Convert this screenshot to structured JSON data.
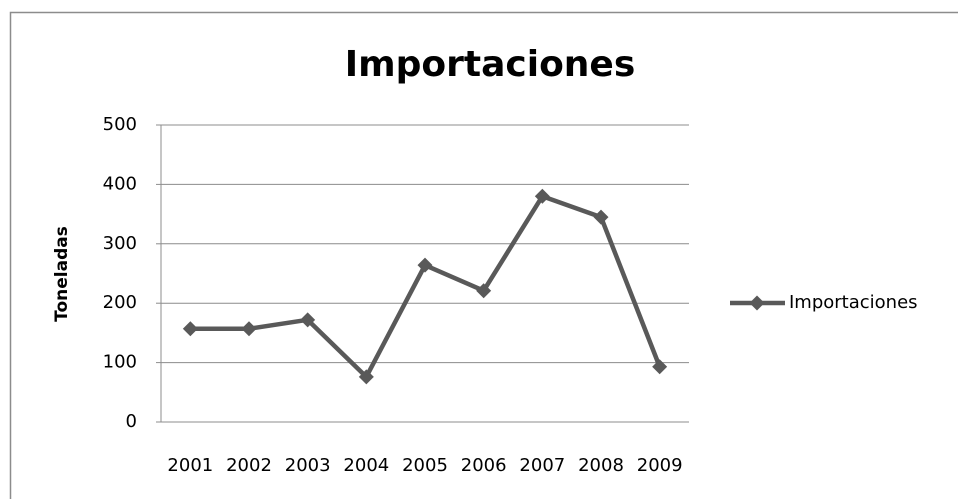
{
  "chart_data": {
    "type": "line",
    "title": "Importaciones",
    "y_label": "Toneladas",
    "categories": [
      "2001",
      "2002",
      "2003",
      "2004",
      "2005",
      "2006",
      "2007",
      "2008",
      "2009"
    ],
    "series": [
      {
        "name": "Importaciones",
        "color": "#595959",
        "values": [
          157,
          157,
          172,
          76,
          264,
          221,
          380,
          345,
          93
        ]
      }
    ],
    "ylim": [
      0,
      500
    ],
    "yticks": [
      0,
      100,
      200,
      300,
      400,
      500
    ],
    "grid": true,
    "legend": "right"
  }
}
